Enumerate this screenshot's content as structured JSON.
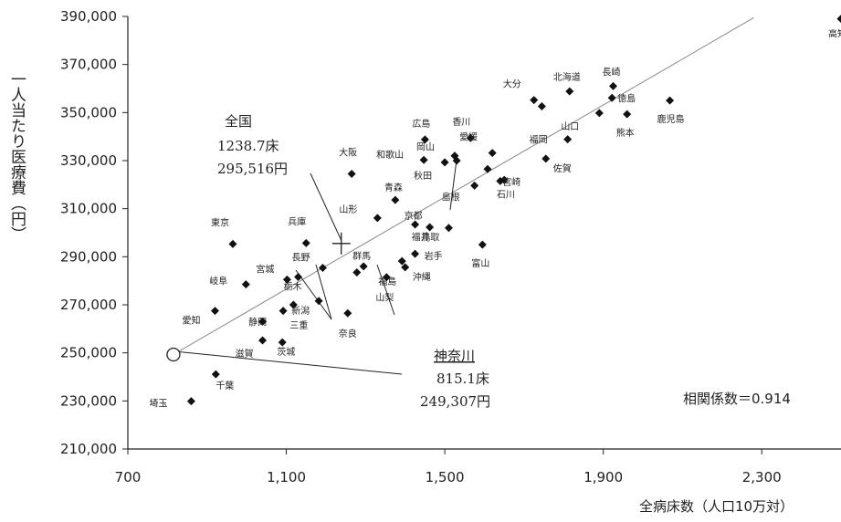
{
  "chart_data": {
    "type": "scatter",
    "xlabel": "全病床数（人口10万対）",
    "ylabel": "一人当たり医療費（円）",
    "xlim": [
      700,
      2500
    ],
    "ylim": [
      210000,
      390000
    ],
    "x_ticks": [
      700,
      1100,
      1500,
      1900,
      2300
    ],
    "x_tick_labels": [
      "700",
      "1,100",
      "1,500",
      "1,900",
      "2,300"
    ],
    "y_ticks": [
      210000,
      230000,
      250000,
      270000,
      290000,
      310000,
      330000,
      350000,
      370000,
      390000
    ],
    "y_tick_labels": [
      "210,000",
      "230,000",
      "250,000",
      "270,000",
      "290,000",
      "310,000",
      "330,000",
      "350,000",
      "370,000",
      "390,000"
    ],
    "grid": false,
    "trendline": {
      "x": [
        815,
        2280
      ],
      "y": [
        249307,
        389500
      ]
    },
    "correlation_label": "相関係数＝0.914",
    "points": [
      {
        "name": "高知",
        "x": 2500,
        "y": 389000
      },
      {
        "name": "北海道",
        "x": 1815,
        "y": 358800
      },
      {
        "name": "長崎",
        "x": 1925,
        "y": 361000
      },
      {
        "name": "大分",
        "x": 1725,
        "y": 355200
      },
      {
        "name": "",
        "x": 1745,
        "y": 352600
      },
      {
        "name": "徳島",
        "x": 1922,
        "y": 356100
      },
      {
        "name": "鹿児島",
        "x": 2068,
        "y": 355000
      },
      {
        "name": "熊本",
        "x": 1960,
        "y": 349300
      },
      {
        "name": "山口",
        "x": 1890,
        "y": 349800
      },
      {
        "name": "福岡",
        "x": 1810,
        "y": 338900
      },
      {
        "name": "佐賀",
        "x": 1755,
        "y": 330800
      },
      {
        "name": "宮崎",
        "x": 1650,
        "y": 322000
      },
      {
        "name": "香川",
        "x": 1565,
        "y": 339400
      },
      {
        "name": "広島",
        "x": 1450,
        "y": 338800
      },
      {
        "name": "愛媛",
        "x": 1620,
        "y": 333200
      },
      {
        "name": "岡山",
        "x": 1525,
        "y": 332000
      },
      {
        "name": "和歌山",
        "x": 1447,
        "y": 330300
      },
      {
        "name": "秋田",
        "x": 1500,
        "y": 329300
      },
      {
        "name": "",
        "x": 1530,
        "y": 330000
      },
      {
        "name": "",
        "x": 1608,
        "y": 326500
      },
      {
        "name": "石川",
        "x": 1640,
        "y": 321500
      },
      {
        "name": "島根",
        "x": 1575,
        "y": 319600
      },
      {
        "name": "大阪",
        "x": 1265,
        "y": 324500
      },
      {
        "name": "青森",
        "x": 1375,
        "y": 313600
      },
      {
        "name": "京都",
        "x": 1425,
        "y": 303400
      },
      {
        "name": "鳥取",
        "x": 1510,
        "y": 302000
      },
      {
        "name": "山形",
        "x": 1330,
        "y": 306100
      },
      {
        "name": "福井",
        "x": 1462,
        "y": 302300
      },
      {
        "name": "富山",
        "x": 1595,
        "y": 295000
      },
      {
        "name": "東京",
        "x": 965,
        "y": 295300
      },
      {
        "name": "兵庫",
        "x": 1150,
        "y": 295700
      },
      {
        "name": "岩手",
        "x": 1425,
        "y": 291200
      },
      {
        "name": "群馬",
        "x": 1295,
        "y": 286000
      },
      {
        "name": "",
        "x": 1278,
        "y": 283500
      },
      {
        "name": "沖縄",
        "x": 1400,
        "y": 285600
      },
      {
        "name": "福島",
        "x": 1392,
        "y": 288200
      },
      {
        "name": "長野",
        "x": 1192,
        "y": 285400
      },
      {
        "name": "宮城",
        "x": 1102,
        "y": 280500
      },
      {
        "name": "岐阜",
        "x": 998,
        "y": 278500
      },
      {
        "name": "栃木",
        "x": 1130,
        "y": 281600
      },
      {
        "name": "山梨",
        "x": 1353,
        "y": 281500
      },
      {
        "name": "新潟",
        "x": 1182,
        "y": 271600
      },
      {
        "name": "三重",
        "x": 1118,
        "y": 270000
      },
      {
        "name": "愛知",
        "x": 920,
        "y": 267500
      },
      {
        "name": "静岡",
        "x": 1092,
        "y": 267500
      },
      {
        "name": "奈良",
        "x": 1255,
        "y": 266500
      },
      {
        "name": "",
        "x": 1040,
        "y": 263000
      },
      {
        "name": "滋賀",
        "x": 1040,
        "y": 255200
      },
      {
        "name": "茨城",
        "x": 1090,
        "y": 254400
      },
      {
        "name": "千葉",
        "x": 922,
        "y": 241100
      },
      {
        "name": "埼玉",
        "x": 860,
        "y": 229900
      }
    ],
    "annotations": [
      {
        "title": "全国",
        "line1": "1238.7床",
        "line2": "295,516円",
        "x": 1238.7,
        "y": 295516,
        "marker": "cross"
      },
      {
        "title": "神奈川",
        "line1": "815.1床",
        "line2": "249,307円",
        "x": 815.1,
        "y": 249307,
        "marker": "circle"
      }
    ]
  }
}
